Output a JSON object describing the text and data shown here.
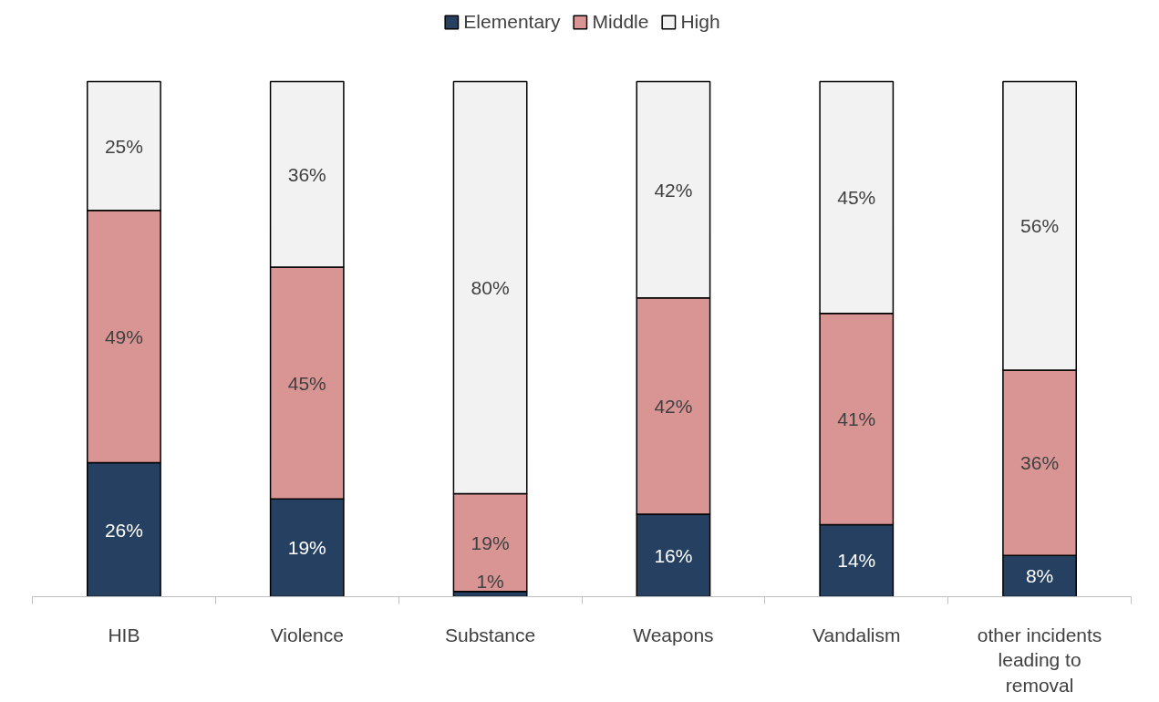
{
  "chart_data": {
    "type": "bar",
    "stacked": true,
    "legend": "top",
    "grid": false,
    "categories": [
      "HIB",
      "Violence",
      "Substance",
      "Weapons",
      "Vandalism",
      "other incidents leading to removal"
    ],
    "series": [
      {
        "name": "Elementary",
        "color": "#264061",
        "values": [
          26,
          19,
          1,
          16,
          14,
          8
        ],
        "value_labels": [
          "26%",
          "19%",
          "1%",
          "16%",
          "14%",
          "8%"
        ]
      },
      {
        "name": "Middle",
        "color": "#d99594",
        "values": [
          49,
          45,
          19,
          42,
          41,
          36
        ],
        "value_labels": [
          "49%",
          "45%",
          "19%",
          "42%",
          "41%",
          "36%"
        ]
      },
      {
        "name": "High",
        "color": "#f2f2f2",
        "values": [
          25,
          36,
          80,
          42,
          45,
          56
        ],
        "value_labels": [
          "25%",
          "36%",
          "80%",
          "42%",
          "45%",
          "56%"
        ]
      }
    ]
  }
}
